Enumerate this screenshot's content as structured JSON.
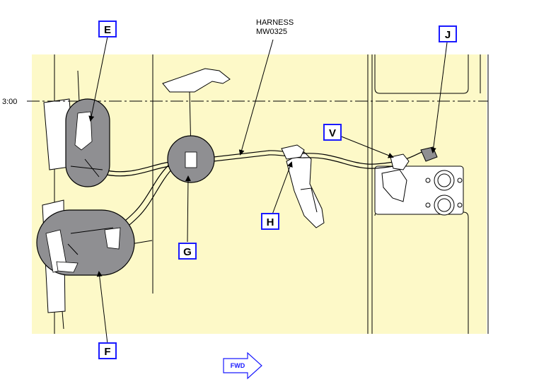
{
  "harness_label": {
    "line1": "HARNESS",
    "line2": "MW0325"
  },
  "clock_label": "3:00",
  "callouts": {
    "E": "E",
    "J": "J",
    "V": "V",
    "H": "H",
    "G": "G",
    "F": "F"
  },
  "fwd_label": "FWD",
  "colors": {
    "background_panel": "#fdf9c8",
    "detail_fill": "#8f8f92",
    "callout_border": "#1a1aff",
    "line": "#000000"
  }
}
